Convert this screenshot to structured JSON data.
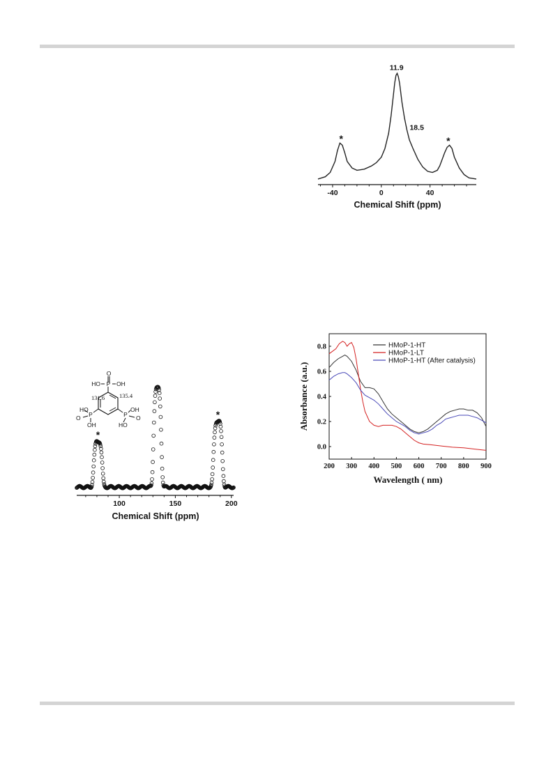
{
  "chart_data": [
    {
      "type": "line",
      "title": "",
      "xlabel": "Chemical Shift (ppm)",
      "ylabel": "",
      "xlim": [
        -52,
        78
      ],
      "xticks": [
        -40,
        0,
        40
      ],
      "y_axis_visible": false,
      "annotations": [
        {
          "text": "11.9",
          "x": 12.5
        },
        {
          "text": "18.5",
          "x": 21
        },
        {
          "text": "*",
          "x": -33
        },
        {
          "text": "*",
          "x": 55
        }
      ],
      "series": [
        {
          "color": "#222222",
          "x": [
            -52,
            -46,
            -42,
            -38,
            -36,
            -34,
            -32,
            -30,
            -28,
            -24,
            -20,
            -14,
            -8,
            -4,
            0,
            3,
            6,
            8,
            10,
            11,
            12,
            13,
            14,
            15,
            17,
            19,
            21,
            23,
            26,
            30,
            34,
            38,
            42,
            46,
            48,
            50,
            52,
            54,
            56,
            58,
            60,
            64,
            68,
            72,
            78
          ],
          "y": [
            0.02,
            0.04,
            0.08,
            0.18,
            0.28,
            0.35,
            0.33,
            0.26,
            0.18,
            0.12,
            0.1,
            0.11,
            0.14,
            0.17,
            0.22,
            0.3,
            0.44,
            0.6,
            0.8,
            0.9,
            0.97,
            0.99,
            0.96,
            0.9,
            0.72,
            0.58,
            0.47,
            0.38,
            0.3,
            0.2,
            0.13,
            0.09,
            0.08,
            0.1,
            0.14,
            0.2,
            0.26,
            0.31,
            0.33,
            0.3,
            0.22,
            0.12,
            0.06,
            0.03,
            0.02
          ]
        }
      ]
    },
    {
      "type": "scatter",
      "title": "",
      "xlabel": "Chemical Shift (ppm)",
      "ylabel": "",
      "xlim": [
        62,
        202
      ],
      "xticks": [
        100,
        150,
        200
      ],
      "y_axis_visible": false,
      "marker": "open-circle",
      "annotations": [
        {
          "text": "*",
          "x": 81
        },
        {
          "text": "*",
          "x": 188
        }
      ],
      "inset_structure": {
        "labels": [
          "O",
          "HO",
          "P",
          "OH",
          "131.6",
          "135.4",
          "HO",
          "HO",
          "OH",
          "O",
          "P",
          "P",
          "O",
          "OH"
        ]
      },
      "peaks": [
        {
          "center": 81,
          "height": 0.43,
          "width": 3.5
        },
        {
          "center": 134,
          "height": 0.93,
          "width": 3.2
        },
        {
          "center": 188,
          "height": 0.62,
          "width": 3.6
        }
      ],
      "baseline": 0.045
    },
    {
      "type": "line",
      "title": "",
      "xlabel": "Wavelength ( nm)",
      "ylabel": "Absorbance (a.u.)",
      "xlim": [
        200,
        900
      ],
      "ylim": [
        -0.1,
        0.9
      ],
      "xticks": [
        200,
        300,
        400,
        500,
        600,
        700,
        800,
        900
      ],
      "yticks": [
        0.0,
        0.2,
        0.4,
        0.6,
        0.8
      ],
      "legend_position": "top-right",
      "series": [
        {
          "name": "HMoP-1-HT",
          "color": "#333333",
          "x": [
            200,
            220,
            240,
            260,
            270,
            280,
            300,
            320,
            340,
            360,
            380,
            400,
            420,
            440,
            460,
            480,
            500,
            520,
            540,
            560,
            580,
            600,
            620,
            640,
            660,
            680,
            700,
            720,
            740,
            760,
            780,
            800,
            820,
            840,
            860,
            880,
            900
          ],
          "y": [
            0.63,
            0.67,
            0.7,
            0.72,
            0.73,
            0.72,
            0.68,
            0.61,
            0.52,
            0.47,
            0.47,
            0.46,
            0.42,
            0.36,
            0.3,
            0.26,
            0.23,
            0.2,
            0.17,
            0.14,
            0.12,
            0.11,
            0.12,
            0.14,
            0.17,
            0.2,
            0.23,
            0.26,
            0.28,
            0.29,
            0.3,
            0.3,
            0.29,
            0.29,
            0.27,
            0.23,
            0.16
          ]
        },
        {
          "name": "HMoP-1-LT",
          "color": "#d42020",
          "x": [
            200,
            215,
            230,
            245,
            260,
            270,
            280,
            290,
            300,
            310,
            320,
            330,
            340,
            350,
            360,
            380,
            400,
            420,
            440,
            460,
            480,
            500,
            520,
            540,
            560,
            580,
            600,
            620,
            650,
            700,
            750,
            800,
            850,
            900
          ],
          "y": [
            0.74,
            0.76,
            0.78,
            0.82,
            0.84,
            0.83,
            0.8,
            0.82,
            0.83,
            0.79,
            0.7,
            0.58,
            0.46,
            0.36,
            0.28,
            0.2,
            0.17,
            0.16,
            0.17,
            0.17,
            0.17,
            0.16,
            0.14,
            0.11,
            0.08,
            0.05,
            0.03,
            0.02,
            0.015,
            0.005,
            -0.005,
            -0.01,
            -0.02,
            -0.03
          ]
        },
        {
          "name": "HMoP-1-HT (After catalysis)",
          "color": "#4a4ab8",
          "x": [
            200,
            220,
            240,
            260,
            270,
            280,
            300,
            320,
            340,
            360,
            380,
            400,
            420,
            440,
            460,
            480,
            500,
            520,
            540,
            560,
            580,
            600,
            620,
            640,
            660,
            680,
            700,
            720,
            740,
            760,
            780,
            800,
            820,
            840,
            860,
            880,
            900
          ],
          "y": [
            0.53,
            0.56,
            0.58,
            0.59,
            0.59,
            0.58,
            0.55,
            0.51,
            0.45,
            0.41,
            0.39,
            0.37,
            0.34,
            0.3,
            0.26,
            0.23,
            0.2,
            0.18,
            0.16,
            0.13,
            0.11,
            0.1,
            0.11,
            0.12,
            0.14,
            0.17,
            0.19,
            0.22,
            0.23,
            0.24,
            0.25,
            0.25,
            0.25,
            0.24,
            0.23,
            0.21,
            0.19
          ]
        }
      ]
    }
  ]
}
